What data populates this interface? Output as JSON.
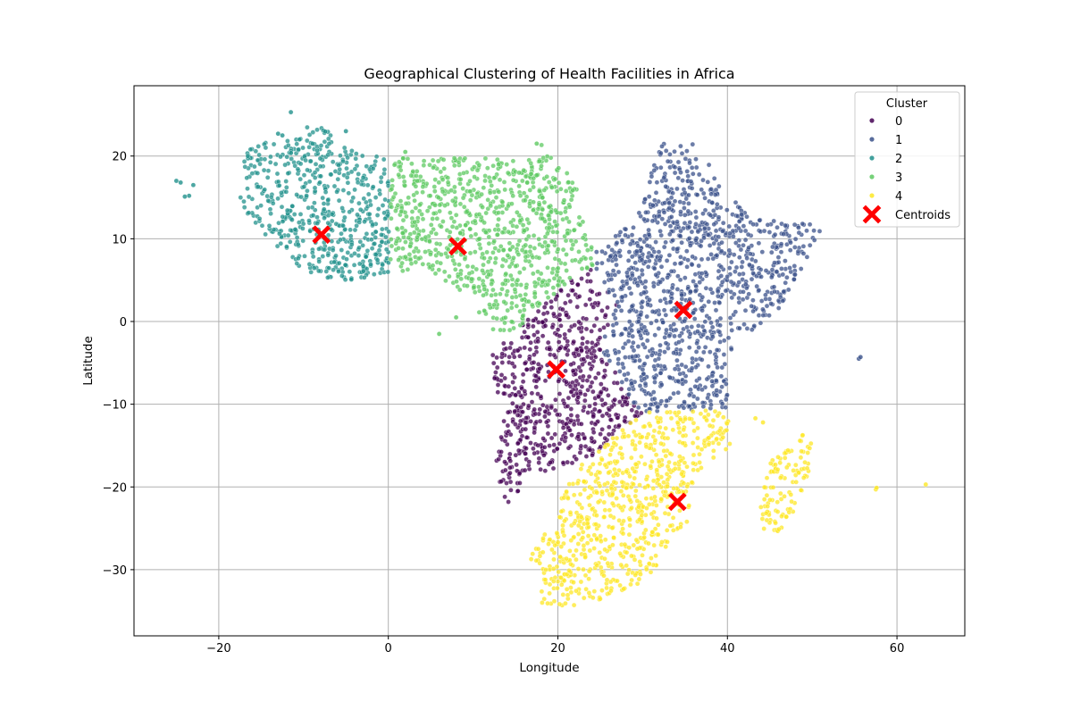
{
  "chart_data": {
    "type": "scatter",
    "title": "Geographical Clustering of Health Facilities in Africa",
    "xlabel": "Longitude",
    "ylabel": "Latitude",
    "xlim": [
      -30,
      68
    ],
    "ylim": [
      -38,
      28.5
    ],
    "xticks": [
      -20,
      0,
      20,
      40,
      60
    ],
    "yticks": [
      -30,
      -20,
      -10,
      0,
      10,
      20
    ],
    "grid": true,
    "legend": {
      "title": "Cluster",
      "placement": "top-right"
    },
    "series": [
      {
        "name": "0",
        "color": "#440154",
        "regions": [
          [
            [
              14.5,
              -1.5
            ],
            [
              21.5,
              5
            ],
            [
              24,
              6.5
            ],
            [
              27,
              2
            ],
            [
              25,
              -3
            ],
            [
              29,
              -10
            ],
            [
              30,
              -11
            ],
            [
              26,
              -14.5
            ],
            [
              22.5,
              -17.5
            ],
            [
              21,
              -17
            ],
            [
              20,
              -18.5
            ],
            [
              17,
              -18
            ],
            [
              14,
              -22.5
            ],
            [
              12.5,
              -18
            ],
            [
              13.5,
              -13
            ],
            [
              12,
              -4
            ]
          ]
        ]
      },
      {
        "name": "1",
        "color": "#3b528b",
        "regions": [
          [
            [
              24,
              6.5
            ],
            [
              24.5,
              8.5
            ],
            [
              27,
              10.5
            ],
            [
              30,
              14
            ],
            [
              32,
              21.5
            ],
            [
              36,
              21.5
            ],
            [
              40,
              16
            ],
            [
              43,
              12.5
            ],
            [
              47,
              12
            ],
            [
              51.5,
              12
            ],
            [
              48,
              5
            ],
            [
              46,
              1.5
            ],
            [
              42,
              -2
            ],
            [
              40,
              -4
            ],
            [
              40,
              -10.5
            ],
            [
              30,
              -11
            ],
            [
              29,
              -10
            ],
            [
              25,
              -3
            ],
            [
              27,
              2
            ]
          ]
        ],
        "extra": [
          [
            55.5,
            -4.5
          ],
          [
            55.7,
            -4.3
          ]
        ]
      },
      {
        "name": "2",
        "color": "#21918c",
        "regions": [
          [
            [
              -17.5,
              14.7
            ],
            [
              -17,
              21
            ],
            [
              -12,
              22.5
            ],
            [
              -8.5,
              24
            ],
            [
              -3,
              20
            ],
            [
              0.2,
              20
            ],
            [
              0.2,
              6
            ],
            [
              -4,
              5
            ],
            [
              -7.5,
              4.4
            ],
            [
              -11,
              7
            ],
            [
              -13.2,
              8.5
            ],
            [
              -15,
              11
            ],
            [
              -16.8,
              12.5
            ]
          ]
        ],
        "extra": [
          [
            -25,
            17
          ],
          [
            -24.5,
            16.8
          ],
          [
            -23.5,
            15.2
          ],
          [
            -24,
            15.1
          ],
          [
            -23,
            16.5
          ],
          [
            -11.5,
            25.3
          ],
          [
            -5,
            23
          ],
          [
            -13,
            22.7
          ],
          [
            -12.5,
            22.5
          ]
        ]
      },
      {
        "name": "3",
        "color": "#5ec962",
        "regions": [
          [
            [
              0.2,
              6
            ],
            [
              0.2,
              20
            ],
            [
              4,
              19.5
            ],
            [
              9,
              20
            ],
            [
              16,
              19.5
            ],
            [
              18,
              21.5
            ],
            [
              22.5,
              16.5
            ],
            [
              23,
              12
            ],
            [
              24.5,
              8.5
            ],
            [
              24,
              6.5
            ],
            [
              21.5,
              5
            ],
            [
              14.5,
              -1.5
            ],
            [
              12,
              -1
            ],
            [
              9.5,
              3
            ],
            [
              8,
              4
            ],
            [
              5,
              6
            ]
          ]
        ],
        "extra": [
          [
            6,
            -1.5
          ],
          [
            8,
            0.5
          ],
          [
            2,
            20.5
          ],
          [
            13,
            19
          ],
          [
            17.5,
            21.5
          ]
        ]
      },
      {
        "name": "4",
        "color": "#fde725",
        "regions": [
          [
            [
              30,
              -11
            ],
            [
              40,
              -10.5
            ],
            [
              40.5,
              -15
            ],
            [
              36,
              -18.5
            ],
            [
              35.5,
              -24
            ],
            [
              33,
              -26.5
            ],
            [
              32.5,
              -28.5
            ],
            [
              30,
              -31.5
            ],
            [
              26,
              -33.5
            ],
            [
              21,
              -34.5
            ],
            [
              18,
              -34
            ],
            [
              18,
              -30
            ],
            [
              16.5,
              -28.5
            ],
            [
              19.5,
              -24
            ],
            [
              20,
              -22
            ],
            [
              22.5,
              -17.5
            ],
            [
              26,
              -14.5
            ]
          ],
          [
            [
              44,
              -25
            ],
            [
              43.5,
              -22
            ],
            [
              45,
              -17
            ],
            [
              47.5,
              -15
            ],
            [
              49.5,
              -12
            ],
            [
              50.5,
              -15.5
            ],
            [
              47.5,
              -24
            ],
            [
              46,
              -25.5
            ]
          ]
        ],
        "extra": [
          [
            57.5,
            -20.3
          ],
          [
            57.6,
            -20.1
          ],
          [
            63.4,
            -19.7
          ],
          [
            43.3,
            -11.7
          ],
          [
            44.2,
            -12.2
          ]
        ]
      }
    ],
    "centroids": {
      "label": "Centroids",
      "color": "#ff0000",
      "points": [
        [
          19.8,
          -5.8
        ],
        [
          34.8,
          1.4
        ],
        [
          -7.9,
          10.5
        ],
        [
          8.2,
          9.1
        ],
        [
          34.1,
          -21.8
        ]
      ]
    }
  }
}
